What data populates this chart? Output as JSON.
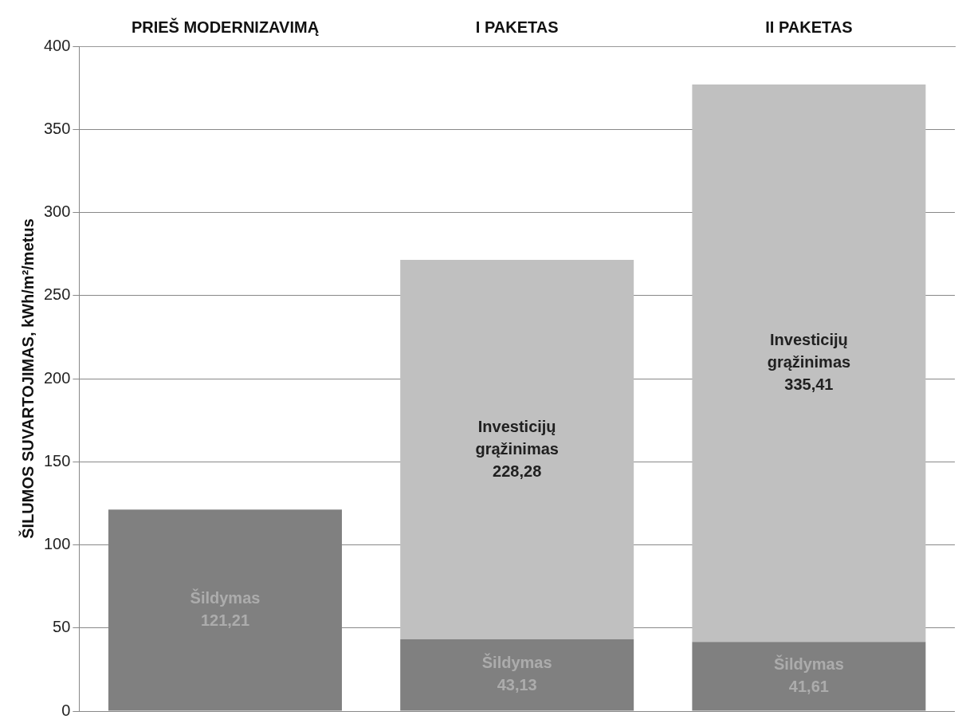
{
  "chart_data": {
    "type": "bar",
    "stacked": true,
    "ylabel": "ŠILUMOS SUVARTOJIMAS, kWh/m²/metus",
    "categories": [
      "PRIEŠ MODERNIZAVIMĄ",
      "I PAKETAS",
      "II PAKETAS"
    ],
    "series": [
      {
        "name": "Šildymas",
        "color": "#808080",
        "values": [
          121.21,
          43.13,
          41.61
        ],
        "value_labels": [
          "121,21",
          "43,13",
          "41,61"
        ]
      },
      {
        "name": "Investicijų grąžinimas",
        "color": "#c0c0c0",
        "values": [
          null,
          228.28,
          335.41
        ],
        "value_labels": [
          null,
          "228,28",
          "335,41"
        ]
      }
    ],
    "ylim": [
      0,
      400
    ],
    "yticks": [
      0,
      50,
      100,
      150,
      200,
      250,
      300,
      350,
      400
    ],
    "grid": "y",
    "legend": false
  }
}
